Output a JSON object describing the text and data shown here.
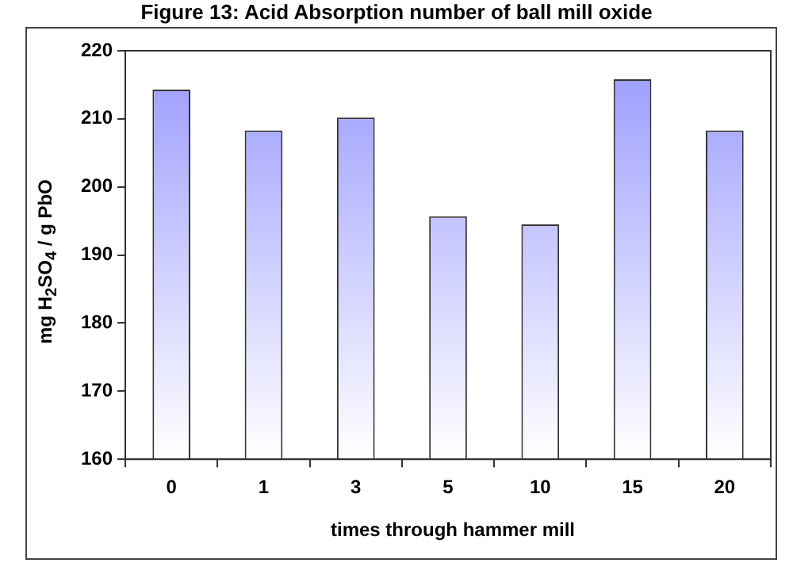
{
  "chart_data": {
    "type": "bar",
    "title": "Figure 13: Acid Absorption number of ball mill oxide",
    "xlabel": "times through hammer mill",
    "ylabel": "mg H$_{2}$SO$_{4}$ / g PbO",
    "categories": [
      "0",
      "1",
      "3",
      "5",
      "10",
      "15",
      "20"
    ],
    "values": [
      214.3,
      208.3,
      210.2,
      195.7,
      194.5,
      215.8,
      208.3
    ],
    "color": "#9999ff",
    "ylim": [
      160,
      220
    ],
    "yticks": [
      160,
      170,
      180,
      190,
      200,
      210,
      220
    ],
    "grid": false,
    "legend": false
  }
}
